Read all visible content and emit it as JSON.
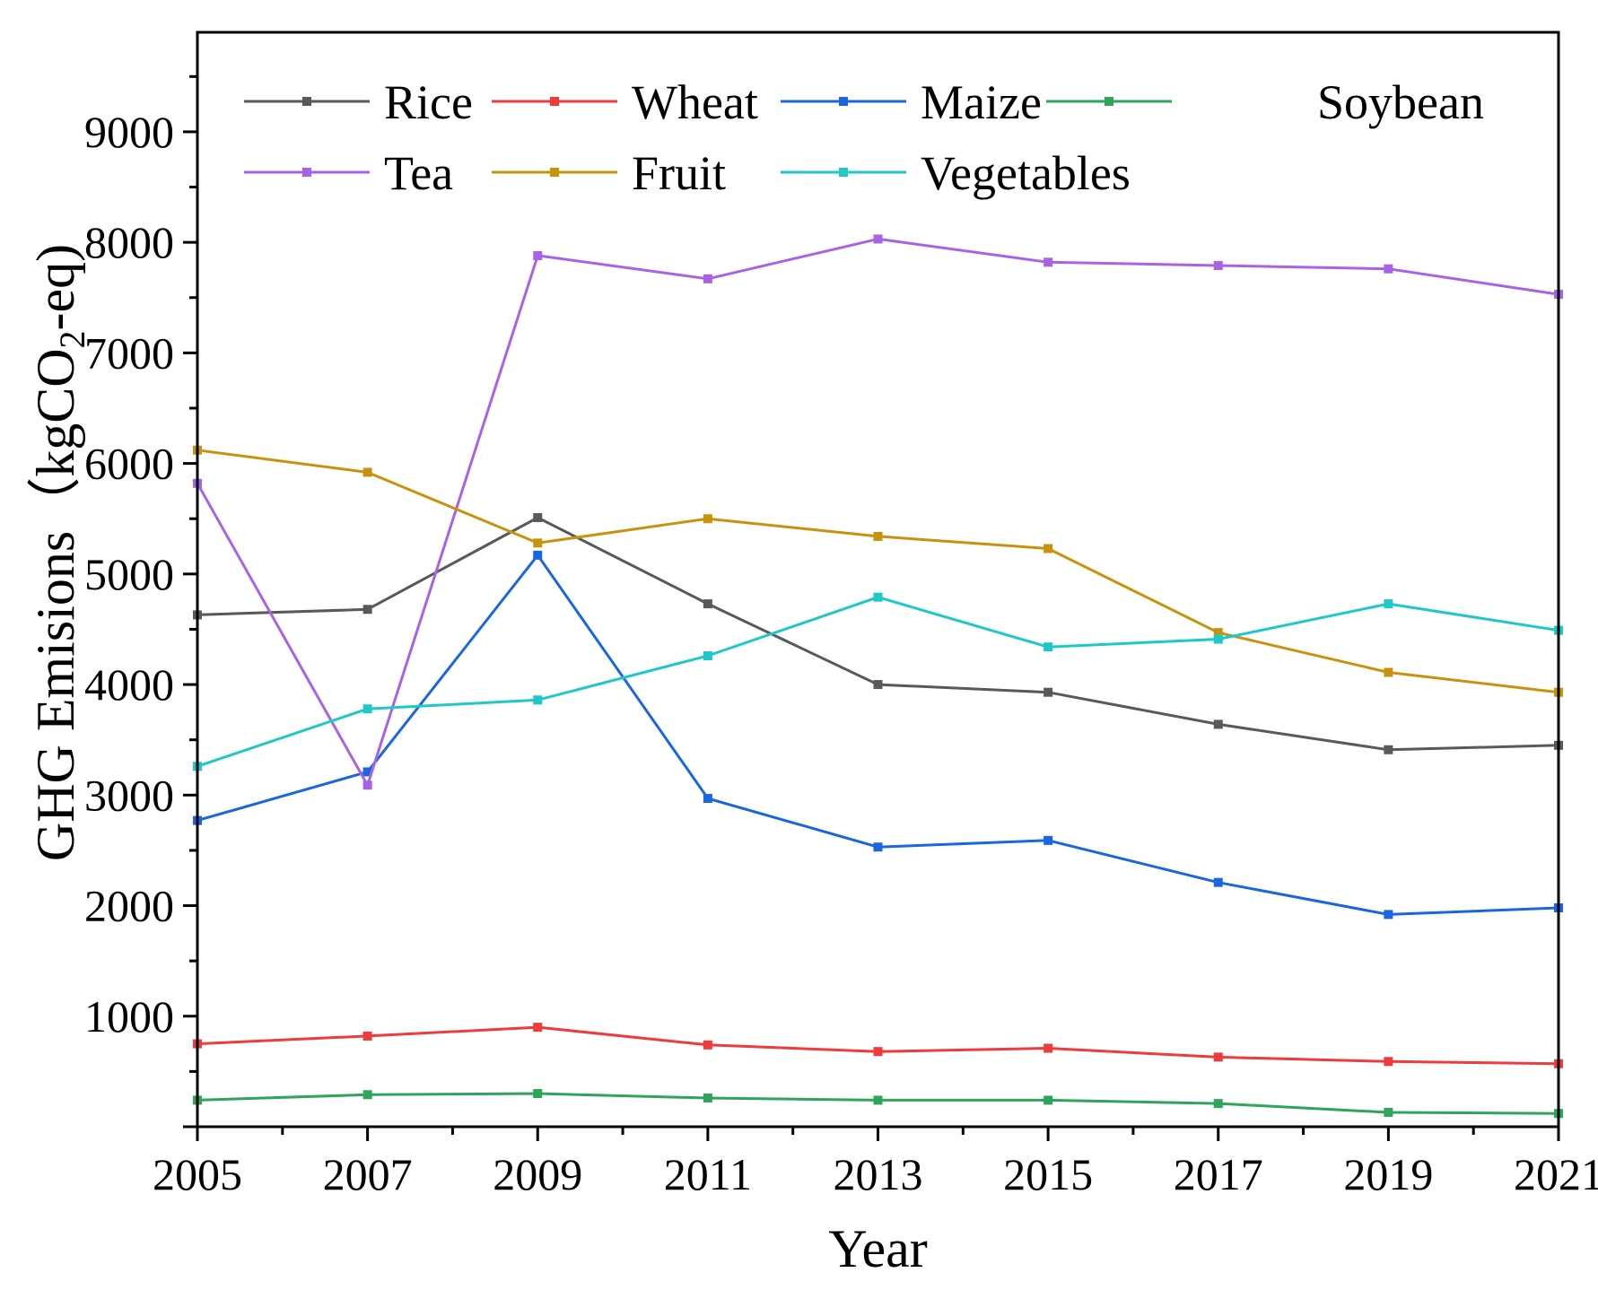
{
  "chart_data": {
    "type": "line",
    "title": "",
    "xlabel": "Year",
    "ylabel": {
      "prefix": "GHG Emisions（kgCO",
      "subscript": "2",
      "suffix": "-eq)"
    },
    "x": [
      2005,
      2007,
      2009,
      2011,
      2013,
      2015,
      2017,
      2019,
      2021
    ],
    "x_ticks": [
      "2005",
      "2007",
      "2009",
      "2011",
      "2013",
      "2015",
      "2017",
      "2019",
      "2021"
    ],
    "xlim": [
      2005,
      2021
    ],
    "ylim": [
      0,
      9900
    ],
    "y_ticks": [
      1000,
      2000,
      3000,
      4000,
      5000,
      6000,
      7000,
      8000,
      9000
    ],
    "y_tick_labels": [
      "1000",
      "2000",
      "3000",
      "4000",
      "5000",
      "6000",
      "7000",
      "8000",
      "9000"
    ],
    "grid": false,
    "legend_position": "top",
    "series": [
      {
        "name": "Rice",
        "color": "#595959",
        "values": [
          4630,
          4680,
          5510,
          4730,
          4000,
          3930,
          3640,
          3410,
          3450
        ]
      },
      {
        "name": "Wheat",
        "color": "#ee3b3b",
        "values": [
          750,
          820,
          900,
          740,
          680,
          710,
          630,
          590,
          570
        ]
      },
      {
        "name": "Maize",
        "color": "#1a66e0",
        "values": [
          2770,
          3210,
          5170,
          2970,
          2530,
          2590,
          2210,
          1920,
          1980
        ]
      },
      {
        "name": "Soybean",
        "color": "#2ea65a",
        "values": [
          240,
          290,
          300,
          260,
          240,
          240,
          210,
          130,
          120
        ]
      },
      {
        "name": "Tea",
        "color": "#a862e8",
        "values": [
          5820,
          3090,
          7880,
          7670,
          8030,
          7820,
          7790,
          7760,
          7530
        ]
      },
      {
        "name": "Fruit",
        "color": "#c9920c",
        "values": [
          6120,
          5920,
          5280,
          5500,
          5340,
          5230,
          4470,
          4110,
          3930
        ]
      },
      {
        "name": "Vegetables",
        "color": "#1ec8c8",
        "values": [
          3260,
          3780,
          3860,
          4260,
          4790,
          4340,
          4410,
          4730,
          4490
        ]
      }
    ]
  }
}
